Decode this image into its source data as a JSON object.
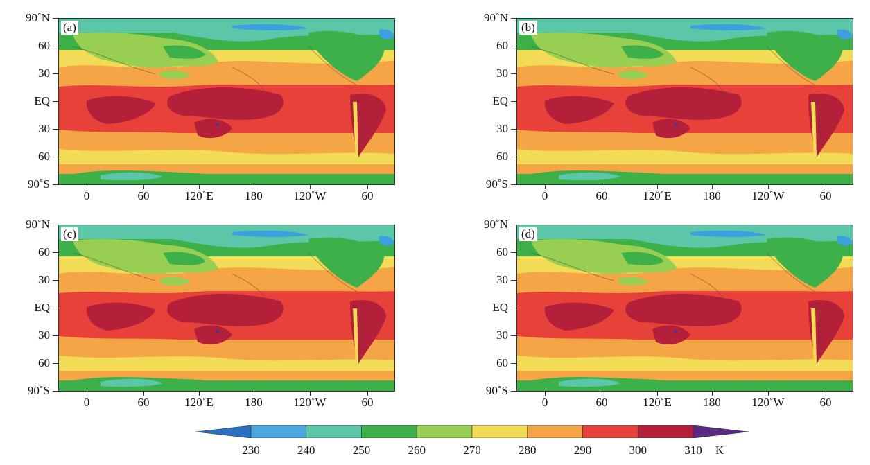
{
  "figure": {
    "panels": [
      {
        "id": "a",
        "label": "(a)"
      },
      {
        "id": "b",
        "label": "(b)"
      },
      {
        "id": "c",
        "label": "(c)"
      },
      {
        "id": "d",
        "label": "(d)"
      }
    ],
    "y_ticks": [
      "90˚N",
      "60",
      "30",
      "EQ",
      "30",
      "60",
      "90˚S"
    ],
    "x_ticks": [
      "0",
      "60",
      "120˚E",
      "180",
      "120˚W",
      "60"
    ],
    "colorbar": {
      "unit": "K",
      "tick_labels": [
        "230",
        "240",
        "250",
        "260",
        "270",
        "280",
        "290",
        "300",
        "310"
      ],
      "colors": [
        "#2a6fc0",
        "#4aa8e0",
        "#5cc6a8",
        "#3db04a",
        "#98cf52",
        "#f2dc56",
        "#f5a446",
        "#e8413a",
        "#b4203a",
        "#5a2a82"
      ]
    },
    "field_colors": {
      "ice_cold": "#3aa0e0",
      "polar": "#5cc6a8",
      "subpolar": "#3db04a",
      "cool": "#98cf52",
      "mid": "#f2dc56",
      "warm": "#f5a446",
      "tropical": "#e8413a",
      "hot": "#b4203a"
    }
  }
}
